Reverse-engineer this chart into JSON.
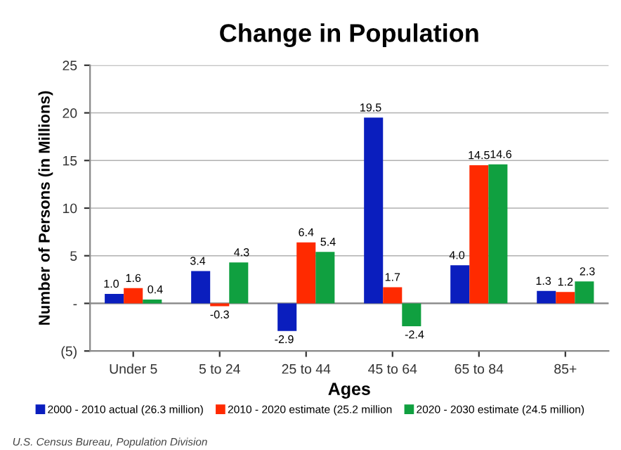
{
  "chart_data": {
    "type": "bar",
    "title": "Change in Population",
    "xlabel": "Ages",
    "ylabel": "Number of Persons (in Millions)",
    "categories": [
      "Under 5",
      "5 to 24",
      "25 to 44",
      "45 to 64",
      "65 to 84",
      "85+"
    ],
    "series": [
      {
        "name": "2000 - 2010 actual (26.3 million)",
        "color": "#0a1ebe",
        "values": [
          1.0,
          3.4,
          -2.9,
          19.5,
          4.0,
          1.3
        ],
        "value_labels": [
          "1.0",
          "3.4",
          "-2.9",
          "19.5",
          "4.0",
          "1.3"
        ]
      },
      {
        "name": "2010 - 2020 estimate (25.2 million",
        "color": "#ff2a00",
        "values": [
          1.6,
          -0.3,
          6.4,
          1.7,
          14.5,
          1.2
        ],
        "value_labels": [
          "1.6",
          "-0.3",
          "6.4",
          "1.7",
          "14.5",
          "1.2"
        ]
      },
      {
        "name": "2020 - 2030 estimate (24.5 million)",
        "color": "#10a040",
        "values": [
          0.4,
          4.3,
          5.4,
          -2.4,
          14.6,
          2.3
        ],
        "value_labels": [
          "0.4",
          "4.3",
          "5.4",
          "-2.4",
          "14.6",
          "2.3"
        ]
      }
    ],
    "ylim": [
      -5,
      25
    ],
    "yticks": [
      {
        "value": -5,
        "label": "(5)"
      },
      {
        "value": 0,
        "label": "-"
      },
      5,
      10,
      15,
      20,
      25
    ],
    "grid": "y",
    "legend": "bottom",
    "annotations": [
      "U.S. Census Bureau, Population Division"
    ]
  }
}
